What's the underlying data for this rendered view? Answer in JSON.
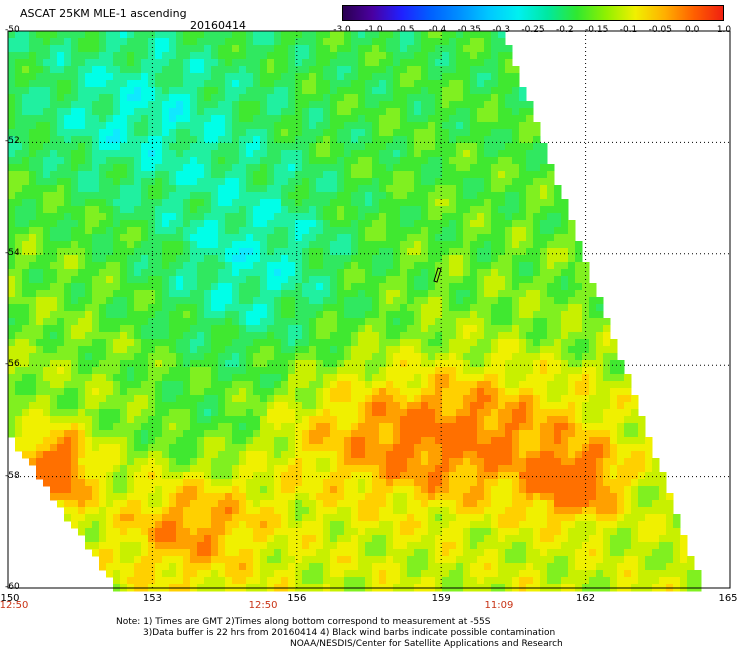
{
  "header": {
    "title": "ASCAT 25KM MLE-1 ascending",
    "date": "20160414"
  },
  "colorbar": {
    "labels": [
      "-3.0",
      "-1.0",
      "-0.5",
      "-0.4",
      "-0.35",
      "-0.3",
      "-0.25",
      "-0.2",
      "-0.15",
      "-0.1",
      "-0.05",
      "0.0",
      "1.0"
    ],
    "colors": [
      "#2a0050",
      "#4a00a0",
      "#2020ff",
      "#0060ff",
      "#0090ff",
      "#00c8ff",
      "#00f0f0",
      "#00e8a0",
      "#30e830",
      "#90f000",
      "#f0f000",
      "#ffb000",
      "#ff6000",
      "#f02010"
    ]
  },
  "axes": {
    "lon_ticks": [
      "150",
      "153",
      "156",
      "159",
      "162",
      "165"
    ],
    "lat_ticks": [
      "-50",
      "-52",
      "-54",
      "-56",
      "-58",
      "-60"
    ],
    "lon_range": [
      150,
      165
    ],
    "lat_range": [
      -60,
      -50
    ]
  },
  "time_labels": [
    {
      "text": "12:50",
      "lon": 150
    },
    {
      "text": "12:50",
      "lon": 155.3
    },
    {
      "text": "11:09",
      "lon": 160.2
    }
  ],
  "notes": {
    "line1": "Note: 1) Times are GMT 2)Times along bottom correspond to measurement at -55S",
    "line2": "3)Data buffer is 22 hrs from 20160414 4) Black wind barbs indicate possible contamination",
    "line3": "NOAA/NESDIS/Center for Satellite Applications and Research"
  },
  "colors": {
    "time_label": "#c83214",
    "grid": "#000000"
  }
}
